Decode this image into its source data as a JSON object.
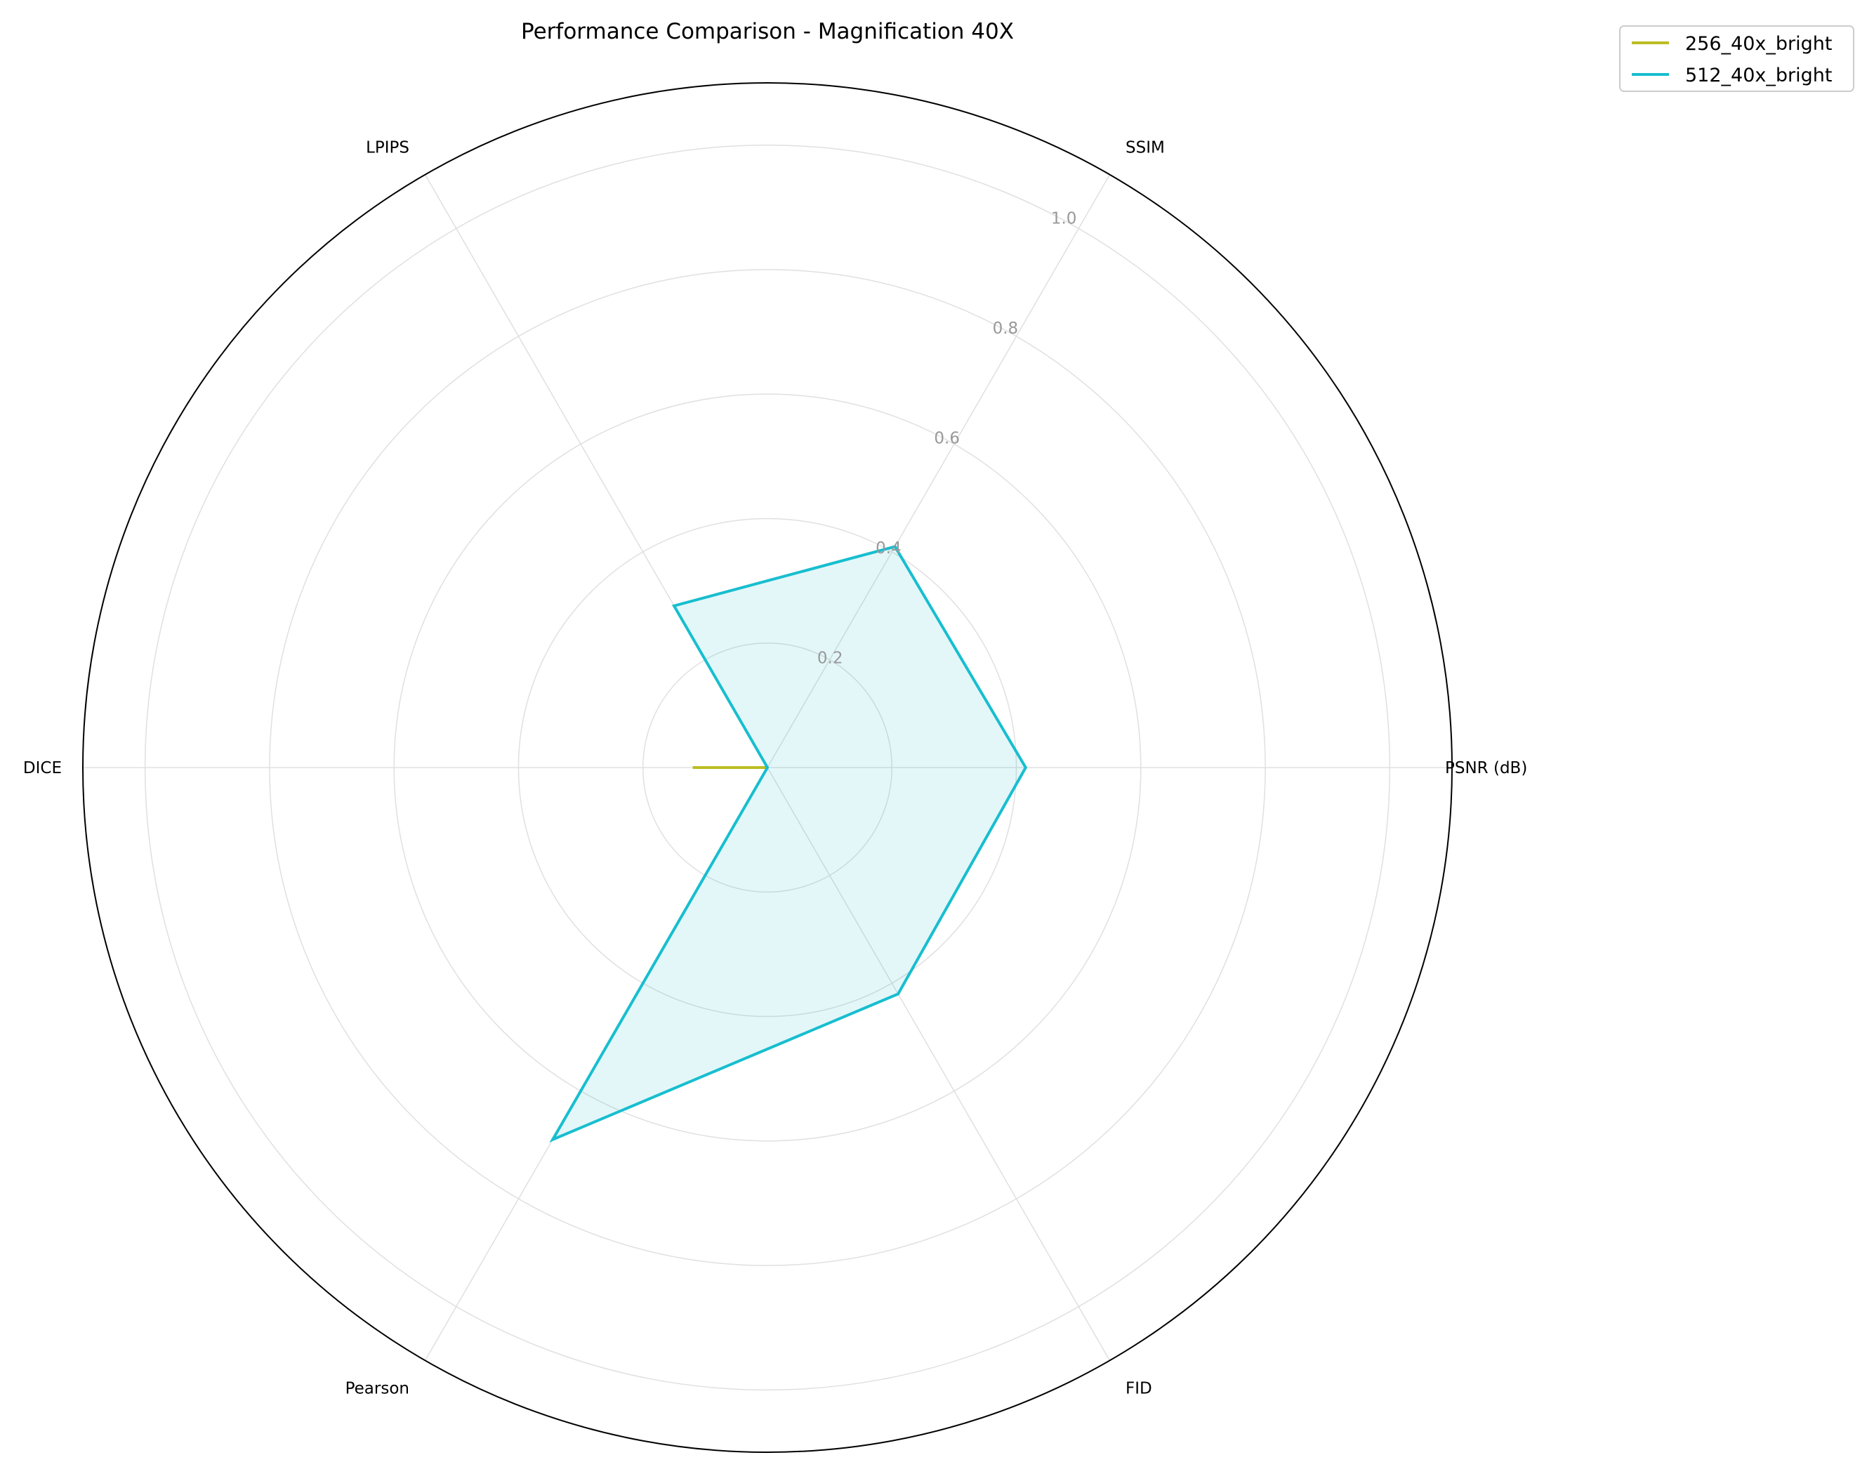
{
  "chart_data": {
    "type": "radar",
    "title": "Performance Comparison - Magnification 40X",
    "axes": [
      "PSNR (dB)",
      "SSIM",
      "LPIPS",
      "DICE",
      "Pearson",
      "FID"
    ],
    "rlim": [
      0,
      1.1
    ],
    "rticks": [
      0.2,
      0.4,
      0.6,
      0.8,
      1.0
    ],
    "rtick_labels": [
      "0.2",
      "0.4",
      "0.6",
      "0.8",
      "1.0"
    ],
    "grid": true,
    "legend_position": "top-right (outside)",
    "series": [
      {
        "name": "256_40x_bright",
        "color": "#bcbd22",
        "values": [
          0.0,
          0.0,
          0.0,
          0.12,
          0.0,
          0.0
        ],
        "fill": false
      },
      {
        "name": "512_40x_bright",
        "color": "#17becf",
        "values": [
          0.415,
          0.41,
          0.3,
          0.0,
          0.69,
          0.42
        ],
        "fill": true
      }
    ]
  }
}
